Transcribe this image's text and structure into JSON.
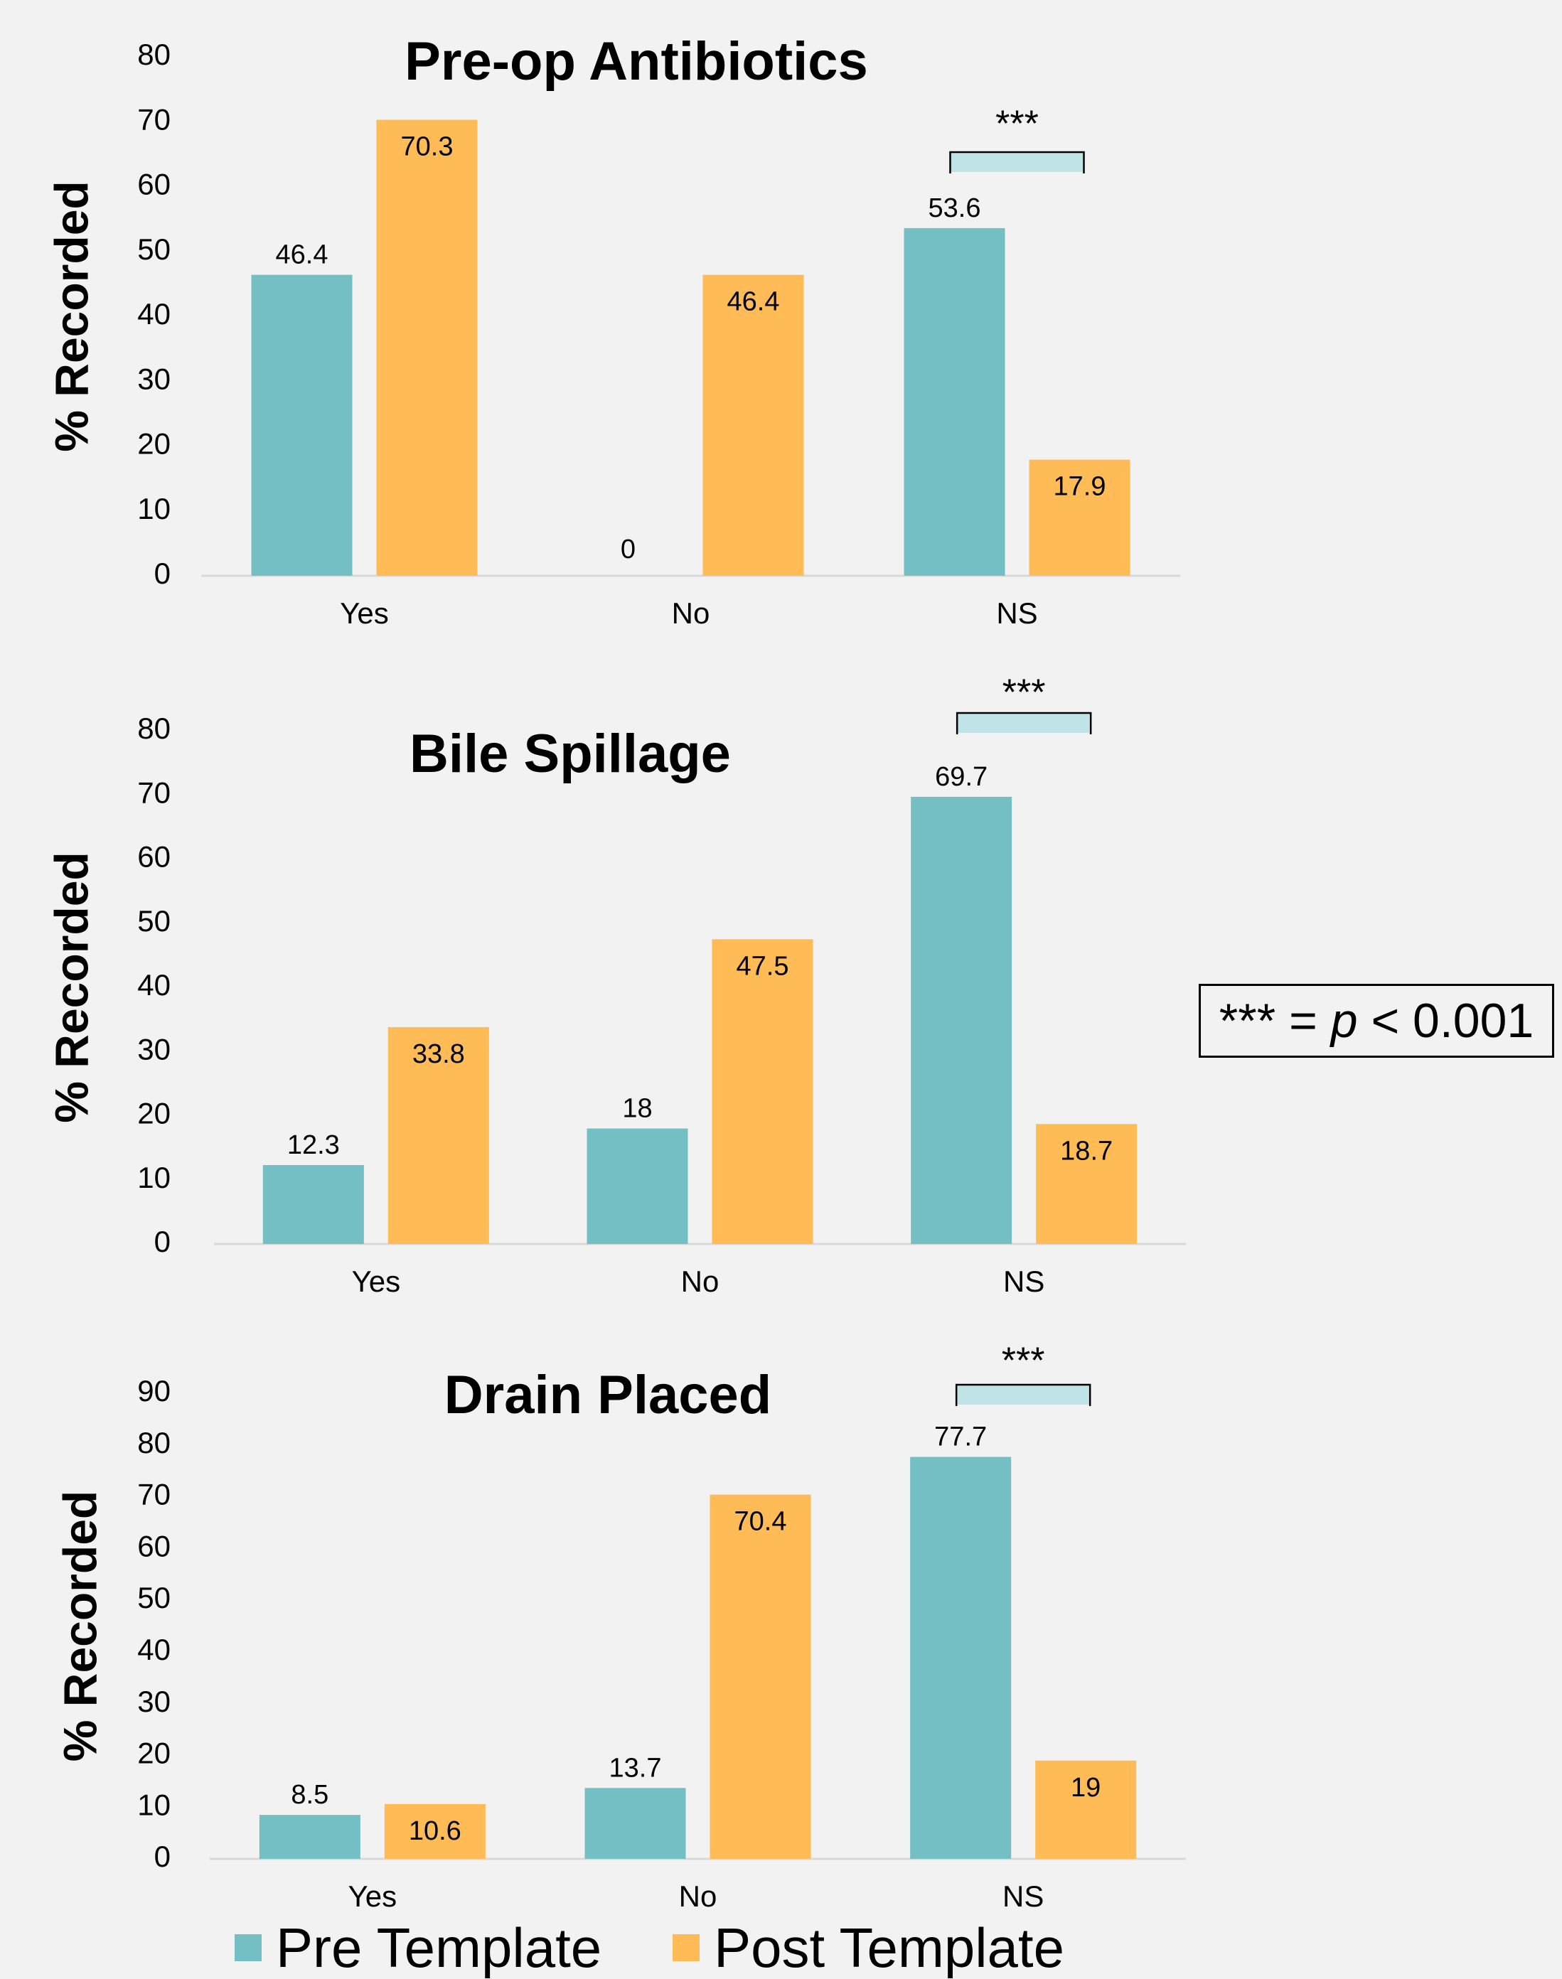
{
  "colors": {
    "background": "#f2f2f2",
    "pre": "#73bfc4",
    "post": "#ffbb55",
    "bracket": "#bfe3e6",
    "axis": "#d9d9d9"
  },
  "legend": [
    {
      "label": "Pre Template",
      "color": "#73bfc4"
    },
    {
      "label": "Post Template",
      "color": "#ffbb55"
    }
  ],
  "significance_note": {
    "stars": "***",
    "equals": "=",
    "p": "p",
    "threshold": "< 0.001"
  },
  "chart_data": [
    {
      "type": "bar",
      "title": "Pre-op Antibiotics",
      "ylabel": "% Recorded",
      "xlabel": "",
      "ylim": [
        0,
        80
      ],
      "yticks": [
        0,
        10,
        20,
        30,
        40,
        50,
        60,
        70,
        80
      ],
      "categories": [
        "Yes",
        "No",
        "NS"
      ],
      "series": [
        {
          "name": "Pre Template",
          "values": [
            46.4,
            0,
            53.6
          ],
          "labels": [
            "46.4",
            "0",
            "53.6"
          ]
        },
        {
          "name": "Post Template",
          "values": [
            70.3,
            46.4,
            17.9
          ],
          "labels": [
            "70.3",
            "46.4",
            "17.9"
          ]
        }
      ],
      "significance": {
        "category": "NS",
        "label": "***"
      },
      "grid": false
    },
    {
      "type": "bar",
      "title": "Bile Spillage",
      "ylabel": "% Recorded",
      "xlabel": "",
      "ylim": [
        0,
        80
      ],
      "yticks": [
        0,
        10,
        20,
        30,
        40,
        50,
        60,
        70,
        80
      ],
      "categories": [
        "Yes",
        "No",
        "NS"
      ],
      "series": [
        {
          "name": "Pre Template",
          "values": [
            12.3,
            18,
            69.7
          ],
          "labels": [
            "12.3",
            "18",
            "69.7"
          ]
        },
        {
          "name": "Post Template",
          "values": [
            33.8,
            47.5,
            18.7
          ],
          "labels": [
            "33.8",
            "47.5",
            "18.7"
          ]
        }
      ],
      "significance": {
        "category": "NS",
        "label": "***"
      },
      "grid": false
    },
    {
      "type": "bar",
      "title": "Drain Placed",
      "ylabel": "% Recorded",
      "xlabel": "",
      "ylim": [
        0,
        90
      ],
      "yticks": [
        0,
        10,
        20,
        30,
        40,
        50,
        60,
        70,
        80,
        90
      ],
      "categories": [
        "Yes",
        "No",
        "NS"
      ],
      "series": [
        {
          "name": "Pre Template",
          "values": [
            8.5,
            13.7,
            77.7
          ],
          "labels": [
            "8.5",
            "13.7",
            "77.7"
          ]
        },
        {
          "name": "Post Template",
          "values": [
            10.6,
            70.4,
            19
          ],
          "labels": [
            "10.6",
            "70.4",
            "19"
          ]
        }
      ],
      "significance": {
        "category": "NS",
        "label": "***"
      },
      "grid": false
    }
  ]
}
